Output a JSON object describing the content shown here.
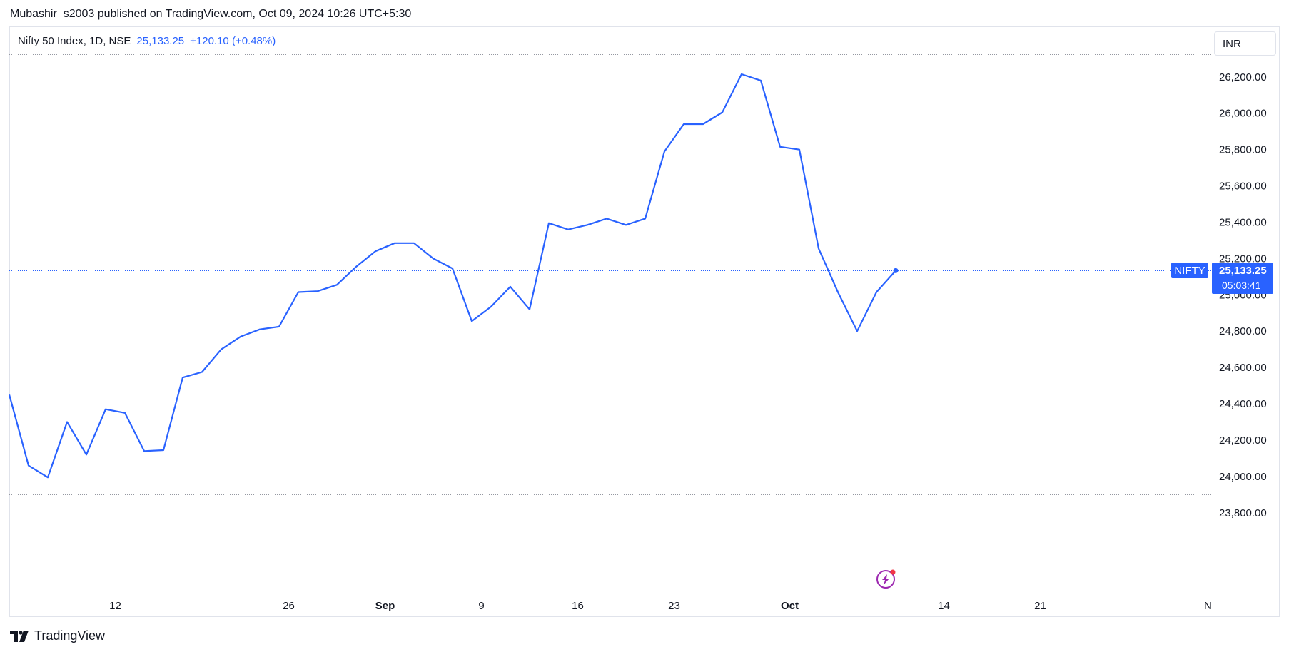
{
  "header": {
    "published_text": "Mubashir_s2003 published on TradingView.com, Oct 09, 2024 10:26 UTC+5:30"
  },
  "legend": {
    "symbol": "Nifty 50 Index, 1D, NSE",
    "price": "25,133.25",
    "change": "+120.10 (+0.48%)"
  },
  "currency_button": "INR",
  "brand": {
    "name": "TradingView",
    "icon": "tradingview-logo-icon"
  },
  "colors": {
    "line": "#2962ff",
    "text": "#131722",
    "grid_dotted": "#9598a1",
    "price_line": "#2962ff"
  },
  "indicator_icon": "lightning-bolt-icon",
  "chart_data": {
    "type": "line",
    "ylim": [
      23650,
      26325
    ],
    "y_ticks": [
      "26,200.00",
      "26,000.00",
      "25,800.00",
      "25,600.00",
      "25,400.00",
      "25,200.00",
      "25,000.00",
      "24,800.00",
      "24,600.00",
      "24,400.00",
      "24,200.00",
      "24,000.00",
      "23,800.00"
    ],
    "y_tick_values": [
      26200,
      26000,
      25800,
      25600,
      25400,
      25200,
      25000,
      24800,
      24600,
      24400,
      24200,
      24000,
      23800
    ],
    "x_tick_labels": [
      {
        "label": "12",
        "bold": false,
        "slot": 5.5
      },
      {
        "label": "26",
        "bold": false,
        "slot": 14.5
      },
      {
        "label": "Sep",
        "bold": true,
        "slot": 19.5
      },
      {
        "label": "9",
        "bold": false,
        "slot": 24.5
      },
      {
        "label": "16",
        "bold": false,
        "slot": 29.5
      },
      {
        "label": "23",
        "bold": false,
        "slot": 34.5
      },
      {
        "label": "Oct",
        "bold": true,
        "slot": 40.5
      },
      {
        "label": "14",
        "bold": false,
        "slot": 48.5
      },
      {
        "label": "21",
        "bold": false,
        "slot": 53.5
      },
      {
        "label": "N",
        "bold": false,
        "slot": 62.2
      }
    ],
    "series": [
      {
        "symbol": "NIFTY",
        "values": [
          24450,
          24060,
          23995,
          24300,
          24120,
          24370,
          24350,
          24140,
          24145,
          24545,
          24575,
          24700,
          24770,
          24810,
          24825,
          25015,
          25020,
          25055,
          25155,
          25240,
          25285,
          25285,
          25200,
          25145,
          24855,
          24935,
          25045,
          24920,
          25395,
          25360,
          25385,
          25420,
          25385,
          25420,
          25790,
          25940,
          25940,
          26005,
          26215,
          26180,
          25815,
          25800,
          25255,
          25015,
          24800,
          25015,
          25133.25
        ]
      }
    ],
    "last_price_label": "25,133.25",
    "countdown": "05:03:41",
    "last_symbol_label": "NIFTY",
    "dotted_levels": [
      26325,
      23900
    ]
  }
}
